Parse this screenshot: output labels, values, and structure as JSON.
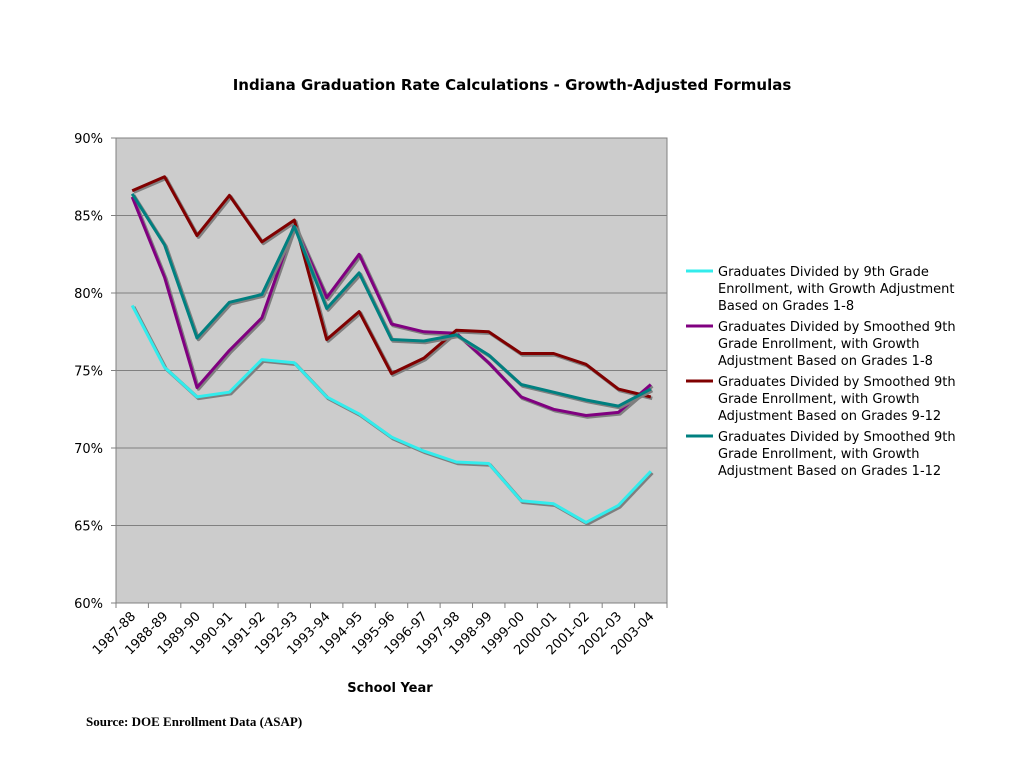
{
  "chart_data": {
    "type": "line",
    "title": "Indiana Graduation Rate Calculations - Growth-Adjusted Formulas",
    "xlabel": "School Year",
    "ylabel": "",
    "ylim": [
      60,
      90
    ],
    "ytick_step": 5,
    "ytick_suffix": "%",
    "grid": true,
    "legend_position": "right",
    "plot_background": "#cccccc",
    "categories": [
      "1987-88",
      "1988-89",
      "1989-90",
      "1990-91",
      "1991-92",
      "1992-93",
      "1993-94",
      "1994-95",
      "1995-96",
      "1996-97",
      "1997-98",
      "1998-99",
      "1999-00",
      "2000-01",
      "2001-02",
      "2002-03",
      "2003-04"
    ],
    "series": [
      {
        "name": "Graduates Divided by 9th Grade Enrollment, with Growth Adjustment Based on Grades 1-8",
        "legend_lines": [
          "Graduates Divided by 9th Grade",
          "Enrollment, with Growth Adjustment",
          "Based on Grades 1-8"
        ],
        "color": "#33ecec",
        "values": [
          79.2,
          75.2,
          73.3,
          73.6,
          75.7,
          75.5,
          73.3,
          72.2,
          70.7,
          69.8,
          69.1,
          69.0,
          66.6,
          66.4,
          65.2,
          66.3,
          68.5
        ]
      },
      {
        "name": "Graduates Divided by Smoothed 9th Grade Enrollment, with Growth Adjustment Based on Grades 1-8",
        "legend_lines": [
          "Graduates Divided by Smoothed 9th",
          "Grade Enrollment, with Growth",
          "Adjustment Based on Grades 1-8"
        ],
        "color": "#800080",
        "values": [
          86.2,
          81.0,
          73.9,
          76.3,
          78.4,
          84.4,
          79.7,
          82.5,
          78.0,
          77.5,
          77.4,
          75.5,
          73.3,
          72.5,
          72.1,
          72.3,
          74.1
        ]
      },
      {
        "name": "Graduates Divided by Smoothed 9th Grade Enrollment, with Growth Adjustment Based on Grades 9-12",
        "legend_lines": [
          "Graduates Divided by Smoothed 9th",
          "Grade Enrollment, with Growth",
          "Adjustment Based on Grades 9-12"
        ],
        "color": "#800000",
        "values": [
          86.6,
          87.5,
          83.7,
          86.3,
          83.3,
          84.7,
          77.0,
          78.8,
          74.8,
          75.8,
          77.6,
          77.5,
          76.1,
          76.1,
          75.4,
          73.8,
          73.3
        ]
      },
      {
        "name": "Graduates Divided by Smoothed 9th Grade Enrollment, with Growth Adjustment Based on Grades 1-12",
        "legend_lines": [
          "Graduates Divided by Smoothed 9th",
          "Grade Enrollment, with Growth",
          "Adjustment Based on Grades 1-12"
        ],
        "color": "#008080",
        "values": [
          86.4,
          83.1,
          77.1,
          79.4,
          79.9,
          84.3,
          79.0,
          81.3,
          77.0,
          76.9,
          77.3,
          76.0,
          74.1,
          73.6,
          73.1,
          72.7,
          73.8
        ]
      }
    ],
    "source": "Source: DOE Enrollment Data (ASAP)"
  }
}
